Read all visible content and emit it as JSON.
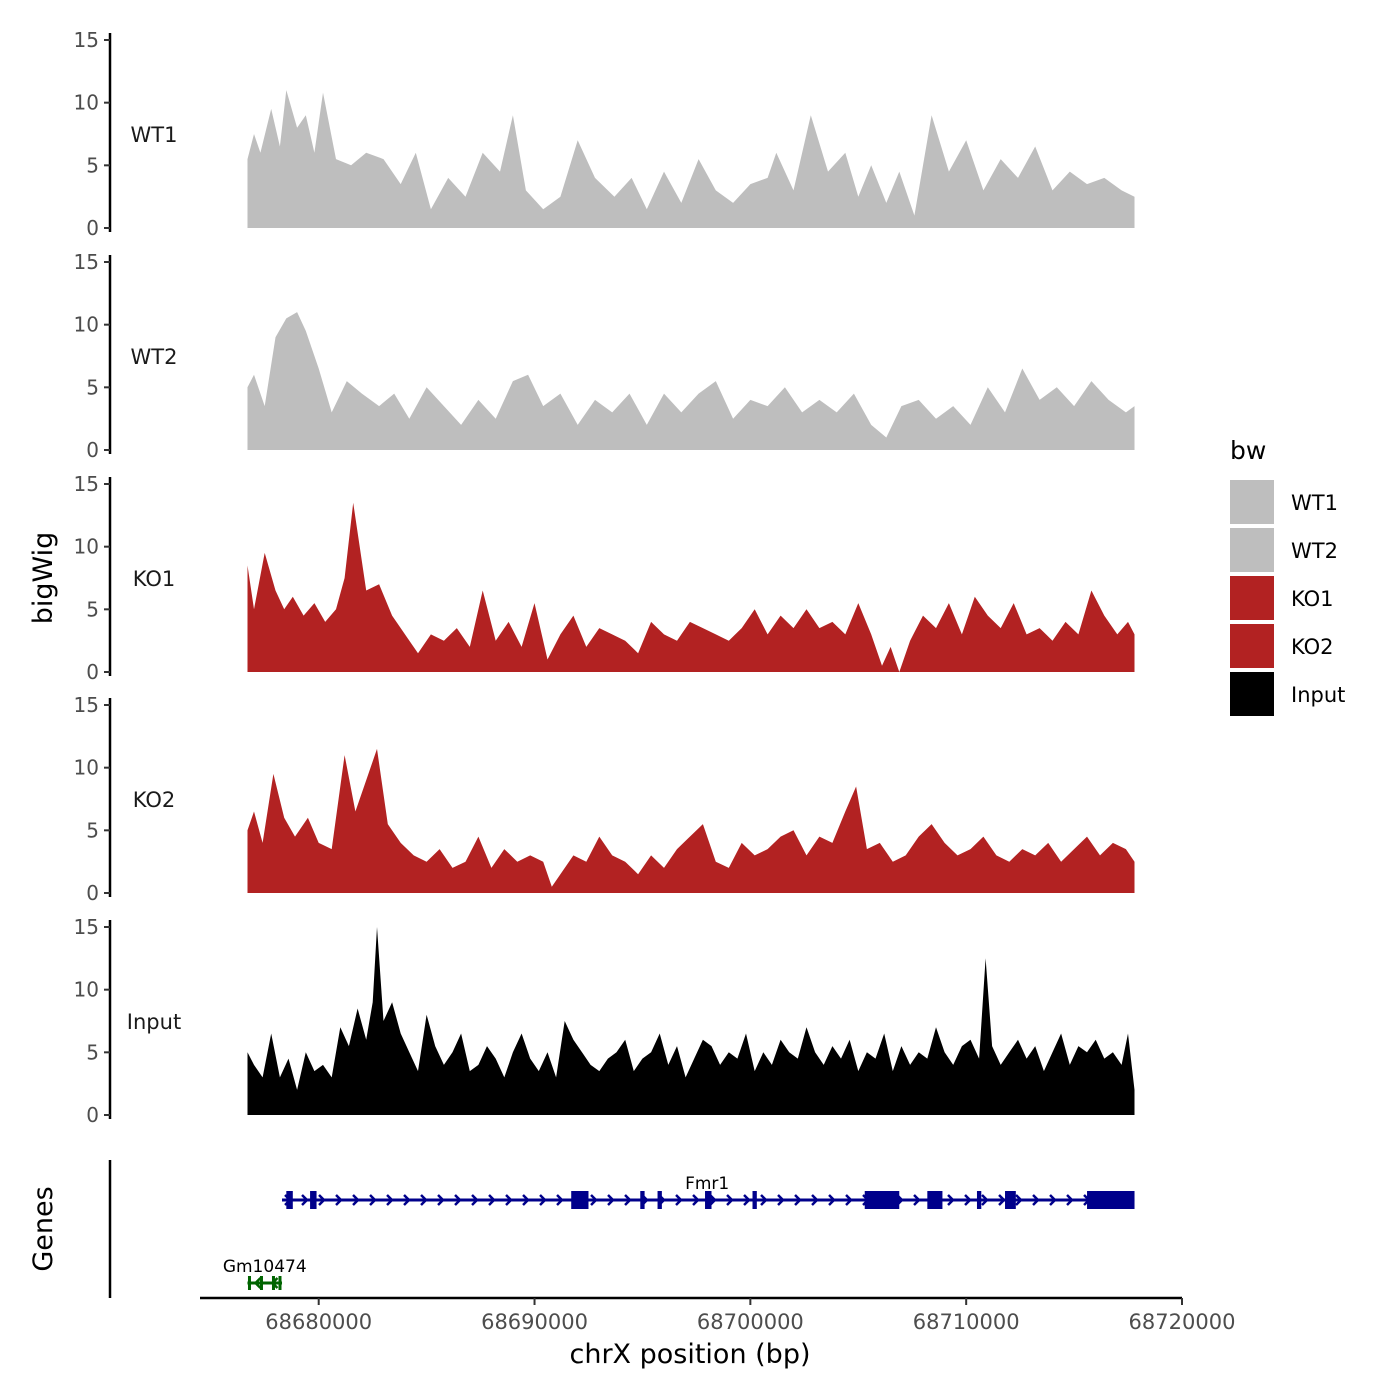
{
  "chart_data": {
    "type": "area",
    "ylabel": "bigWig",
    "genes_label": "Genes",
    "xlabel": "chrX position (bp)",
    "xlim": [
      68674500,
      68720000
    ],
    "ylim": [
      0,
      15
    ],
    "x_ticks": [
      68680000,
      68690000,
      68700000,
      68710000,
      68720000
    ],
    "x_tick_labels": [
      "68680000",
      "68690000",
      "68700000",
      "68710000",
      "68720000"
    ],
    "y_ticks": [
      0,
      5,
      10,
      15
    ],
    "y_tick_labels": [
      "0",
      "5",
      "10",
      "15"
    ],
    "legend": {
      "title": "bw",
      "position": "right",
      "items": [
        {
          "label": "WT1",
          "color": "#BEBEBE"
        },
        {
          "label": "WT2",
          "color": "#BEBEBE"
        },
        {
          "label": "KO1",
          "color": "#B22222"
        },
        {
          "label": "KO2",
          "color": "#B22222"
        },
        {
          "label": "Input",
          "color": "#000000"
        }
      ]
    },
    "series": [
      {
        "name": "WT1",
        "color": "#BEBEBE",
        "x": [
          68676700,
          68677000,
          68677300,
          68677800,
          68678200,
          68678500,
          68679000,
          68679400,
          68679800,
          68680200,
          68680800,
          68681500,
          68682200,
          68683000,
          68683800,
          68684500,
          68685200,
          68686000,
          68686800,
          68687600,
          68688400,
          68689000,
          68689600,
          68690400,
          68691200,
          68692000,
          68692800,
          68693700,
          68694500,
          68695200,
          68696000,
          68696800,
          68697600,
          68698400,
          68699200,
          68700000,
          68700800,
          68701200,
          68702000,
          68702800,
          68703600,
          68704400,
          68705000,
          68705600,
          68706300,
          68706900,
          68707600,
          68708400,
          68709200,
          68710000,
          68710800,
          68711600,
          68712400,
          68713200,
          68714000,
          68714800,
          68715600,
          68716400,
          68717200,
          68717800
        ],
        "values": [
          5.5,
          7.5,
          6.0,
          9.5,
          6.5,
          11.0,
          8.0,
          9.0,
          6.0,
          10.8,
          5.5,
          5.0,
          6.0,
          5.5,
          3.5,
          6.0,
          1.5,
          4.0,
          2.5,
          6.0,
          4.5,
          9.0,
          3.0,
          1.5,
          2.5,
          7.0,
          4.0,
          2.5,
          4.0,
          1.5,
          4.5,
          2.0,
          5.5,
          3.0,
          2.0,
          3.5,
          4.0,
          6.0,
          3.0,
          9.0,
          4.5,
          6.0,
          2.5,
          5.0,
          2.0,
          4.5,
          1.0,
          9.0,
          4.5,
          7.0,
          3.0,
          5.5,
          4.0,
          6.5,
          3.0,
          4.5,
          3.5,
          4.0,
          3.0,
          2.5
        ]
      },
      {
        "name": "WT2",
        "color": "#BEBEBE",
        "x": [
          68676700,
          68677000,
          68677500,
          68678000,
          68678500,
          68679000,
          68679400,
          68680000,
          68680600,
          68681300,
          68682000,
          68682800,
          68683500,
          68684200,
          68685000,
          68685800,
          68686600,
          68687400,
          68688200,
          68689000,
          68689700,
          68690400,
          68691200,
          68692000,
          68692800,
          68693600,
          68694400,
          68695200,
          68696000,
          68696800,
          68697600,
          68698400,
          68699200,
          68700000,
          68700800,
          68701600,
          68702400,
          68703200,
          68704000,
          68704800,
          68705600,
          68706300,
          68707000,
          68707800,
          68708600,
          68709400,
          68710200,
          68711000,
          68711800,
          68712600,
          68713400,
          68714200,
          68715000,
          68715800,
          68716600,
          68717400,
          68717800
        ],
        "values": [
          5.0,
          6.0,
          3.5,
          9.0,
          10.5,
          11.0,
          9.5,
          6.5,
          3.0,
          5.5,
          4.5,
          3.5,
          4.5,
          2.5,
          5.0,
          3.5,
          2.0,
          4.0,
          2.5,
          5.5,
          6.0,
          3.5,
          4.5,
          2.0,
          4.0,
          3.0,
          4.5,
          2.0,
          4.5,
          3.0,
          4.5,
          5.5,
          2.5,
          4.0,
          3.5,
          5.0,
          3.0,
          4.0,
          3.0,
          4.5,
          2.0,
          1.0,
          3.5,
          4.0,
          2.5,
          3.5,
          2.0,
          5.0,
          3.0,
          6.5,
          4.0,
          5.0,
          3.5,
          5.5,
          4.0,
          3.0,
          3.5
        ]
      },
      {
        "name": "KO1",
        "color": "#B22222",
        "x": [
          68676700,
          68677000,
          68677500,
          68678000,
          68678400,
          68678800,
          68679300,
          68679800,
          68680300,
          68680800,
          68681200,
          68681600,
          68682200,
          68682800,
          68683400,
          68684000,
          68684600,
          68685200,
          68685800,
          68686400,
          68687000,
          68687600,
          68688200,
          68688800,
          68689400,
          68690000,
          68690600,
          68691200,
          68691800,
          68692400,
          68693000,
          68693600,
          68694200,
          68694800,
          68695400,
          68696000,
          68696600,
          68697200,
          68697800,
          68698400,
          68699000,
          68699600,
          68700200,
          68700800,
          68701400,
          68702000,
          68702600,
          68703200,
          68703800,
          68704400,
          68705000,
          68705600,
          68706100,
          68706500,
          68706900,
          68707400,
          68708000,
          68708600,
          68709200,
          68709800,
          68710400,
          68711000,
          68711600,
          68712200,
          68712800,
          68713400,
          68714000,
          68714600,
          68715200,
          68715800,
          68716400,
          68717000,
          68717500,
          68717800
        ],
        "values": [
          8.5,
          5.0,
          9.5,
          6.5,
          5.0,
          6.0,
          4.5,
          5.5,
          4.0,
          5.0,
          7.5,
          13.5,
          6.5,
          7.0,
          4.5,
          3.0,
          1.5,
          3.0,
          2.5,
          3.5,
          2.0,
          6.5,
          2.5,
          4.0,
          2.0,
          5.5,
          1.0,
          3.0,
          4.5,
          2.0,
          3.5,
          3.0,
          2.5,
          1.5,
          4.0,
          3.0,
          2.5,
          4.0,
          3.5,
          3.0,
          2.5,
          3.5,
          5.0,
          3.0,
          4.5,
          3.5,
          5.0,
          3.5,
          4.0,
          3.0,
          5.5,
          3.0,
          0.5,
          2.0,
          0.0,
          2.5,
          4.5,
          3.5,
          5.5,
          3.0,
          6.0,
          4.5,
          3.5,
          5.5,
          3.0,
          3.5,
          2.5,
          4.0,
          3.0,
          6.5,
          4.5,
          3.0,
          4.0,
          3.0
        ]
      },
      {
        "name": "KO2",
        "color": "#B22222",
        "x": [
          68676700,
          68677000,
          68677400,
          68677900,
          68678400,
          68678900,
          68679500,
          68680000,
          68680600,
          68681200,
          68681700,
          68682200,
          68682700,
          68683200,
          68683800,
          68684400,
          68685000,
          68685600,
          68686200,
          68686800,
          68687400,
          68688000,
          68688600,
          68689200,
          68689800,
          68690400,
          68690800,
          68691200,
          68691800,
          68692400,
          68693000,
          68693600,
          68694200,
          68694800,
          68695400,
          68696000,
          68696600,
          68697200,
          68697800,
          68698400,
          68699000,
          68699600,
          68700200,
          68700800,
          68701400,
          68702000,
          68702600,
          68703200,
          68703800,
          68704400,
          68704900,
          68705400,
          68706000,
          68706600,
          68707200,
          68707800,
          68708400,
          68709000,
          68709600,
          68710200,
          68710800,
          68711400,
          68712000,
          68712600,
          68713200,
          68713800,
          68714400,
          68715000,
          68715600,
          68716200,
          68716800,
          68717400,
          68717800
        ],
        "values": [
          5.0,
          6.5,
          4.0,
          9.5,
          6.0,
          4.5,
          6.0,
          4.0,
          3.5,
          11.0,
          6.5,
          9.0,
          11.5,
          5.5,
          4.0,
          3.0,
          2.5,
          3.5,
          2.0,
          2.5,
          4.5,
          2.0,
          3.5,
          2.5,
          3.0,
          2.5,
          0.5,
          1.5,
          3.0,
          2.5,
          4.5,
          3.0,
          2.5,
          1.5,
          3.0,
          2.0,
          3.5,
          4.5,
          5.5,
          2.5,
          2.0,
          4.0,
          3.0,
          3.5,
          4.5,
          5.0,
          3.0,
          4.5,
          4.0,
          6.5,
          8.5,
          3.5,
          4.0,
          2.5,
          3.0,
          4.5,
          5.5,
          4.0,
          3.0,
          3.5,
          4.5,
          3.0,
          2.5,
          3.5,
          3.0,
          4.0,
          2.5,
          3.5,
          4.5,
          3.0,
          4.0,
          3.5,
          2.5
        ]
      },
      {
        "name": "Input",
        "color": "#000000",
        "x": [
          68676700,
          68677000,
          68677400,
          68677800,
          68678200,
          68678600,
          68679000,
          68679400,
          68679800,
          68680200,
          68680600,
          68681000,
          68681400,
          68681800,
          68682200,
          68682500,
          68682700,
          68683000,
          68683400,
          68683800,
          68684200,
          68684600,
          68685000,
          68685400,
          68685800,
          68686200,
          68686600,
          68687000,
          68687400,
          68687800,
          68688200,
          68688600,
          68689000,
          68689400,
          68689800,
          68690200,
          68690600,
          68691000,
          68691400,
          68691800,
          68692200,
          68692600,
          68693000,
          68693400,
          68693800,
          68694200,
          68694600,
          68695000,
          68695400,
          68695800,
          68696200,
          68696600,
          68697000,
          68697400,
          68697800,
          68698200,
          68698600,
          68699000,
          68699400,
          68699800,
          68700200,
          68700600,
          68701000,
          68701400,
          68701800,
          68702200,
          68702600,
          68703000,
          68703400,
          68703800,
          68704200,
          68704600,
          68705000,
          68705400,
          68705800,
          68706200,
          68706600,
          68707000,
          68707400,
          68707800,
          68708200,
          68708600,
          68709000,
          68709400,
          68709800,
          68710200,
          68710600,
          68710900,
          68711200,
          68711600,
          68712000,
          68712400,
          68712800,
          68713200,
          68713600,
          68714000,
          68714400,
          68714800,
          68715200,
          68715600,
          68716000,
          68716400,
          68716800,
          68717200,
          68717500,
          68717800
        ],
        "values": [
          5.0,
          4.0,
          3.0,
          6.5,
          3.0,
          4.5,
          2.0,
          5.0,
          3.5,
          4.0,
          3.0,
          7.0,
          5.5,
          8.5,
          6.0,
          9.0,
          15.0,
          7.5,
          9.0,
          6.5,
          5.0,
          3.5,
          8.0,
          5.5,
          4.0,
          5.0,
          6.5,
          3.5,
          4.0,
          5.5,
          4.5,
          3.0,
          5.0,
          6.5,
          4.5,
          3.5,
          5.0,
          3.0,
          7.5,
          6.0,
          5.0,
          4.0,
          3.5,
          4.5,
          5.0,
          6.0,
          3.5,
          4.5,
          5.0,
          6.5,
          4.0,
          5.5,
          3.0,
          4.5,
          6.0,
          5.5,
          4.0,
          5.0,
          4.5,
          6.5,
          3.5,
          5.0,
          4.0,
          6.0,
          5.0,
          4.5,
          7.0,
          5.0,
          4.0,
          5.5,
          4.5,
          6.0,
          3.5,
          5.0,
          4.5,
          6.5,
          3.5,
          5.5,
          4.0,
          5.0,
          4.5,
          7.0,
          5.0,
          4.0,
          5.5,
          6.0,
          4.5,
          12.5,
          5.5,
          4.0,
          5.0,
          6.0,
          4.5,
          5.5,
          3.5,
          5.0,
          6.5,
          4.0,
          5.5,
          5.0,
          6.0,
          4.5,
          5.0,
          4.0,
          6.5,
          2.0
        ]
      }
    ],
    "genes": [
      {
        "name": "Fmr1",
        "color": "#00008B",
        "strand": "+",
        "start": 68678300,
        "end": 68717800,
        "exons": [
          [
            68678500,
            68678800
          ],
          [
            68679600,
            68679900
          ],
          [
            68691700,
            68692500
          ],
          [
            68694900,
            68695100
          ],
          [
            68695700,
            68695900
          ],
          [
            68697900,
            68698200
          ],
          [
            68700100,
            68700300
          ],
          [
            68705300,
            68706900
          ],
          [
            68708200,
            68708900
          ],
          [
            68710500,
            68710700
          ],
          [
            68711800,
            68712300
          ],
          [
            68715600,
            68717800
          ]
        ]
      },
      {
        "name": "Gm10474",
        "color": "#006400",
        "strand": "-",
        "start": 68676700,
        "end": 68678300,
        "exons": []
      }
    ]
  }
}
